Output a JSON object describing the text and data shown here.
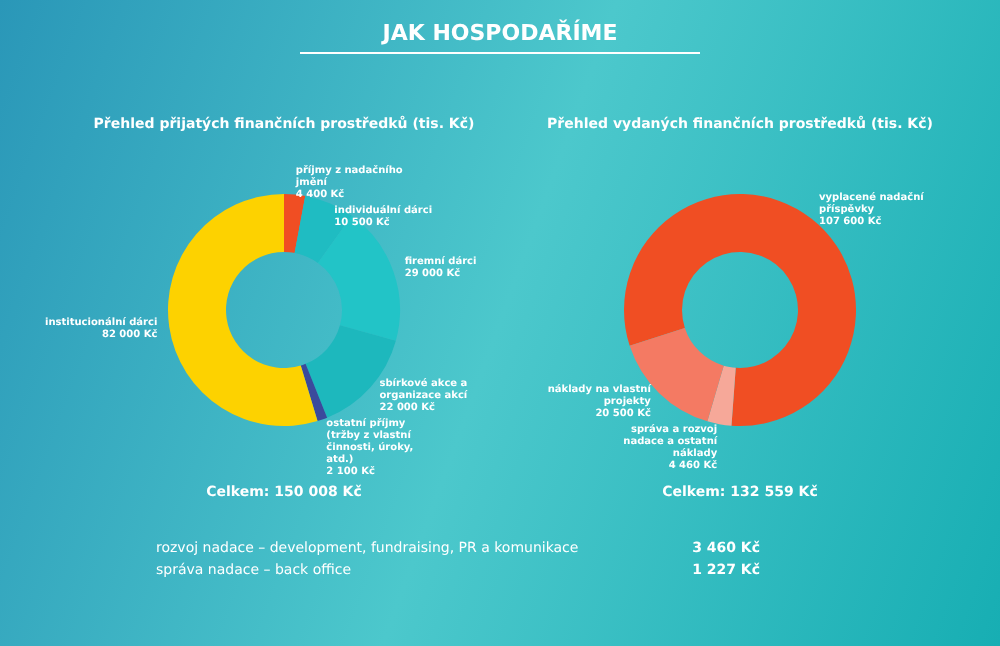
{
  "chart_data": [
    {
      "type": "donut",
      "title": "Přehled přijatých finančních prostředků (tis. Kč)",
      "categories": [
        "příjmy z nadačního jmění",
        "individuální dárci",
        "firemní dárci",
        "sbírkové akce a organizace akcí",
        "ostatní příjmy (tržby z vlastní činnosti, úroky, atd.)",
        "institucionální dárci"
      ],
      "values": [
        4400,
        10500,
        29000,
        22000,
        2100,
        82000
      ],
      "value_labels": [
        "4 400 Kč",
        "10 500 Kč",
        "29 000 Kč",
        "22 000 Kč",
        "2 100 Kč",
        "82 000 Kč"
      ],
      "colors": [
        "#f04e23",
        "#1fbcc2",
        "#22c4c7",
        "#1db8bd",
        "#3b4a9c",
        "#fdd200"
      ],
      "annotations": [
        "JAK HOSPODAŘÍME",
        "Celkem: 150 008 Kč"
      ]
    },
    {
      "type": "donut",
      "title": "Přehled vydaných finančních prostředků (tis. Kč)",
      "categories": [
        "vyplacené nadační příspěvky",
        "správa a rozvoj nadace a ostatní náklady",
        "náklady na vlastní projekty"
      ],
      "values": [
        107600,
        4460,
        20500
      ],
      "value_labels": [
        "107 600 Kč",
        "4 460 Kč",
        "20 500 Kč"
      ],
      "colors": [
        "#f04e23",
        "#f6a899",
        "#f47a63"
      ],
      "annotations": [
        "Celkem: 132 559 Kč",
        "rozvoj nadace – development, fundraising, PR a komunikace",
        "3 460 Kč",
        "správa nadace – back office",
        "1 227 Kč"
      ]
    }
  ]
}
